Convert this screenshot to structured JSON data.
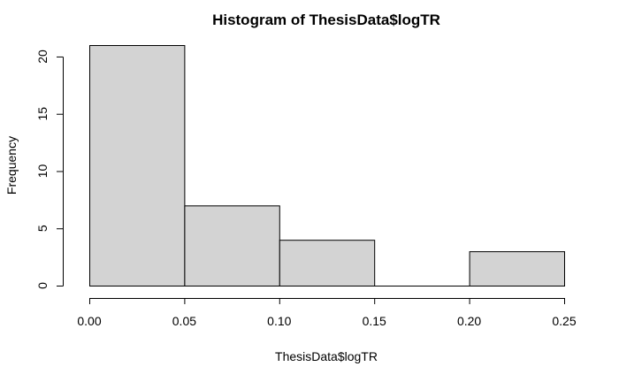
{
  "chart_data": {
    "type": "bar",
    "title": "Histogram of ThesisData$logTR",
    "xlabel": "ThesisData$logTR",
    "ylabel": "Frequency",
    "bins": [
      {
        "x0": 0.0,
        "x1": 0.05,
        "count": 21
      },
      {
        "x0": 0.05,
        "x1": 0.1,
        "count": 7
      },
      {
        "x0": 0.1,
        "x1": 0.15,
        "count": 4
      },
      {
        "x0": 0.15,
        "x1": 0.2,
        "count": 0
      },
      {
        "x0": 0.2,
        "x1": 0.25,
        "count": 3
      }
    ],
    "xlim": [
      0,
      0.25
    ],
    "ylim": [
      0,
      21
    ],
    "x_ticks": [
      0,
      0.05,
      0.1,
      0.15,
      0.2,
      0.25
    ],
    "x_tick_labels": [
      "0.00",
      "0.05",
      "0.10",
      "0.15",
      "0.20",
      "0.25"
    ],
    "y_ticks": [
      0,
      5,
      10,
      15,
      20
    ],
    "y_tick_labels": [
      "0",
      "5",
      "10",
      "15",
      "20"
    ],
    "grid": false,
    "bar_fill": "#d3d3d3",
    "bar_stroke": "#000000"
  }
}
